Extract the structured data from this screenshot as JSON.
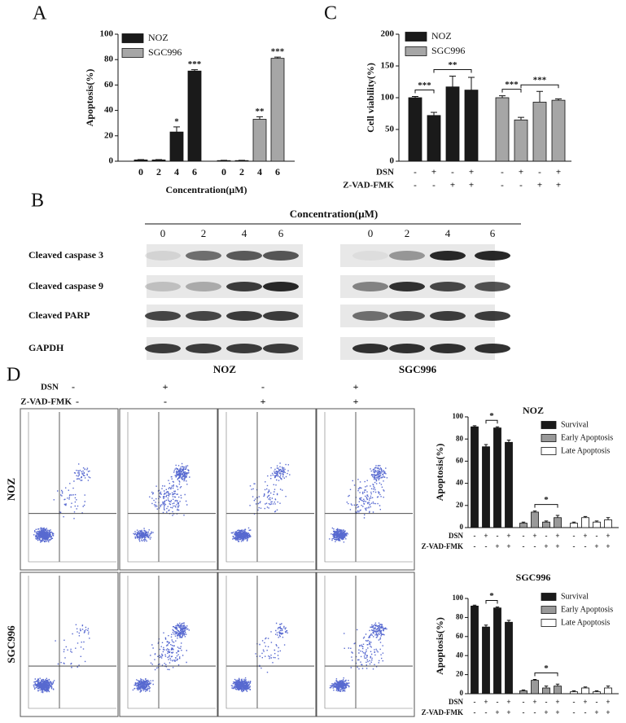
{
  "chart_data": [
    {
      "type": "bar",
      "panel": "A",
      "ylabel": "Apoptosis(%)",
      "xlabel": "Concentration(μM)",
      "categories": [
        "0",
        "2",
        "4",
        "6"
      ],
      "ylim": [
        0,
        100
      ],
      "yticks": [
        0,
        20,
        40,
        60,
        80,
        100
      ],
      "series": [
        {
          "name": "NOZ",
          "color": "#1a1a1a",
          "values": [
            1,
            1,
            23,
            71
          ],
          "errors": [
            0.3,
            0.3,
            4,
            1
          ],
          "stars": [
            null,
            null,
            "*",
            "***"
          ]
        },
        {
          "name": "SGC996",
          "color": "#a6a6a6",
          "values": [
            0.5,
            0.5,
            33,
            81
          ],
          "errors": [
            0.2,
            0.2,
            2,
            1
          ],
          "stars": [
            null,
            null,
            "**",
            "***"
          ]
        }
      ]
    },
    {
      "type": "bar",
      "panel": "C",
      "ylabel": "Cell viability(%)",
      "ylim": [
        0,
        200
      ],
      "yticks": [
        0,
        50,
        100,
        150,
        200
      ],
      "conditions": [
        {
          "name": "DSN",
          "signs": [
            "-",
            "+",
            "-",
            "+"
          ]
        },
        {
          "name": "Z-VAD-FMK",
          "signs": [
            "-",
            "-",
            "+",
            "+"
          ]
        }
      ],
      "significance": [
        "***",
        "**",
        "***",
        "***"
      ],
      "series": [
        {
          "name": "NOZ",
          "color": "#1a1a1a",
          "values": [
            100,
            72,
            117,
            112
          ],
          "errors": [
            2,
            5,
            17,
            20
          ]
        },
        {
          "name": "SGC996",
          "color": "#a6a6a6",
          "values": [
            100,
            65,
            93,
            96
          ],
          "errors": [
            3,
            4,
            17,
            2
          ]
        }
      ]
    },
    {
      "type": "bar",
      "title": "NOZ",
      "ylabel": "Apoptosis(%)",
      "ylim": [
        0,
        100
      ],
      "yticks": [
        0,
        20,
        40,
        60,
        80,
        100
      ],
      "conditions": [
        {
          "name": "DSN",
          "signs": [
            "-",
            "+",
            "-",
            "+"
          ]
        },
        {
          "name": "Z-VAD-FMK",
          "signs": [
            "-",
            "-",
            "+",
            "+"
          ]
        }
      ],
      "significance": [
        "*",
        "*"
      ],
      "series": [
        {
          "name": "Survival",
          "color": "#1a1a1a",
          "values": [
            91,
            73,
            90,
            77
          ],
          "errors": [
            1,
            2,
            1,
            2
          ]
        },
        {
          "name": "Early Apoptosis",
          "color": "#999999",
          "values": [
            4,
            14,
            5,
            9
          ],
          "errors": [
            1,
            1,
            1,
            2
          ]
        },
        {
          "name": "Late Apoptosis",
          "color": "#ffffff",
          "values": [
            4,
            9,
            5,
            7
          ],
          "errors": [
            1,
            1,
            1,
            2
          ]
        }
      ]
    },
    {
      "type": "bar",
      "title": "SGC996",
      "ylabel": "Apoptosis(%)",
      "ylim": [
        0,
        100
      ],
      "yticks": [
        0,
        20,
        40,
        60,
        80,
        100
      ],
      "conditions": [
        {
          "name": "DSN",
          "signs": [
            "-",
            "+",
            "-",
            "+"
          ]
        },
        {
          "name": "Z-VAD-FMK",
          "signs": [
            "-",
            "-",
            "+",
            "+"
          ]
        }
      ],
      "significance": [
        "*",
        "*"
      ],
      "series": [
        {
          "name": "Survival",
          "color": "#1a1a1a",
          "values": [
            92,
            70,
            90,
            75
          ],
          "errors": [
            1,
            2,
            1,
            2
          ]
        },
        {
          "name": "Early Apoptosis",
          "color": "#999999",
          "values": [
            3,
            14,
            6,
            8
          ],
          "errors": [
            1,
            1,
            2,
            2
          ]
        },
        {
          "name": "Late Apoptosis",
          "color": "#ffffff",
          "values": [
            2,
            6,
            2,
            6
          ],
          "errors": [
            1,
            1,
            1,
            2
          ]
        }
      ]
    }
  ],
  "blot": {
    "panel": "B",
    "title": "Concentration(μM)",
    "concentrations": [
      "0",
      "2",
      "4",
      "6"
    ],
    "rows": [
      "Cleaved caspase 3",
      "Cleaved caspase 9",
      "Cleaved PARP",
      "GAPDH"
    ],
    "cell_lines": [
      "NOZ",
      "SGC996"
    ]
  },
  "flow": {
    "panel": "D",
    "conditions": [
      {
        "name": "DSN",
        "signs": [
          "-",
          "+",
          "-",
          "+"
        ]
      },
      {
        "name": "Z-VAD-FMK",
        "signs": [
          "-",
          "-",
          "+",
          "+"
        ]
      }
    ],
    "rows": [
      "NOZ",
      "SGC996"
    ]
  }
}
